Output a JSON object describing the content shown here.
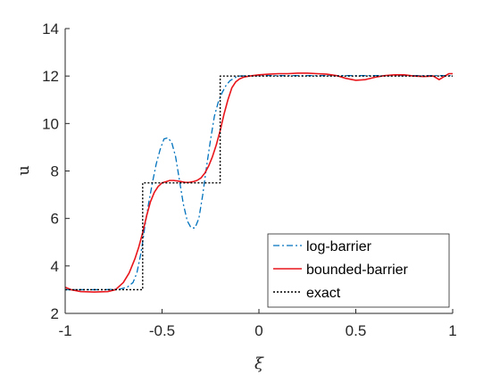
{
  "chart_data": {
    "type": "line",
    "xlabel": "ξ",
    "ylabel": "u",
    "xlim": [
      -1,
      1
    ],
    "ylim": [
      2,
      14
    ],
    "xticks": [
      -1,
      -0.5,
      0,
      0.5,
      1
    ],
    "xtick_labels": [
      "-1",
      "-0.5",
      "0",
      "0.5",
      "1"
    ],
    "yticks": [
      2,
      4,
      6,
      8,
      10,
      12,
      14
    ],
    "ytick_labels": [
      "2",
      "4",
      "6",
      "8",
      "10",
      "12",
      "14"
    ],
    "grid": false,
    "legend_position": "bottom-right",
    "series": [
      {
        "name": "log-barrier",
        "color": "#0072BD",
        "style": "dashdot",
        "x": [
          -1.0,
          -0.9,
          -0.8,
          -0.72,
          -0.68,
          -0.65,
          -0.63,
          -0.61,
          -0.6,
          -0.59,
          -0.57,
          -0.55,
          -0.53,
          -0.51,
          -0.49,
          -0.47,
          -0.45,
          -0.43,
          -0.41,
          -0.39,
          -0.37,
          -0.35,
          -0.33,
          -0.31,
          -0.29,
          -0.27,
          -0.25,
          -0.23,
          -0.21,
          -0.2,
          -0.19,
          -0.17,
          -0.15,
          -0.12,
          -0.1,
          -0.05,
          0.0,
          0.1,
          0.2,
          0.3,
          0.4,
          0.5,
          0.6,
          0.7,
          0.8,
          0.9,
          1.0
        ],
        "y": [
          3.0,
          3.0,
          3.0,
          3.02,
          3.1,
          3.3,
          3.7,
          4.5,
          5.0,
          5.6,
          6.6,
          7.5,
          8.3,
          8.9,
          9.35,
          9.4,
          9.2,
          8.6,
          7.6,
          6.6,
          5.9,
          5.6,
          5.6,
          6.0,
          7.0,
          8.2,
          9.3,
          10.3,
          10.9,
          11.1,
          11.3,
          11.6,
          11.8,
          11.95,
          12.0,
          12.02,
          12.02,
          12.02,
          12.02,
          12.02,
          12.02,
          12.02,
          12.02,
          12.02,
          12.02,
          12.02,
          12.02
        ]
      },
      {
        "name": "bounded-barrier",
        "color": "#E8151B",
        "style": "solid",
        "x": [
          -1.0,
          -0.97,
          -0.92,
          -0.85,
          -0.78,
          -0.74,
          -0.7,
          -0.67,
          -0.64,
          -0.62,
          -0.6,
          -0.58,
          -0.56,
          -0.54,
          -0.52,
          -0.5,
          -0.48,
          -0.46,
          -0.44,
          -0.42,
          -0.4,
          -0.38,
          -0.36,
          -0.34,
          -0.32,
          -0.3,
          -0.28,
          -0.26,
          -0.24,
          -0.22,
          -0.2,
          -0.18,
          -0.16,
          -0.14,
          -0.12,
          -0.1,
          -0.08,
          -0.05,
          0.0,
          0.05,
          0.1,
          0.15,
          0.2,
          0.25,
          0.3,
          0.35,
          0.4,
          0.45,
          0.5,
          0.55,
          0.6,
          0.65,
          0.7,
          0.75,
          0.8,
          0.85,
          0.9,
          0.93,
          0.96,
          0.98,
          1.0
        ],
        "y": [
          3.1,
          3.0,
          2.92,
          2.9,
          2.92,
          3.0,
          3.3,
          3.7,
          4.3,
          4.8,
          5.4,
          6.1,
          6.7,
          7.1,
          7.35,
          7.5,
          7.55,
          7.6,
          7.6,
          7.58,
          7.55,
          7.52,
          7.52,
          7.55,
          7.6,
          7.7,
          7.9,
          8.2,
          8.6,
          9.1,
          9.7,
          10.4,
          11.0,
          11.5,
          11.75,
          11.88,
          11.95,
          12.0,
          12.05,
          12.08,
          12.1,
          12.1,
          12.12,
          12.12,
          12.1,
          12.08,
          12.02,
          11.9,
          11.82,
          11.85,
          11.95,
          12.02,
          12.05,
          12.05,
          12.0,
          11.98,
          12.0,
          11.85,
          12.0,
          12.1,
          12.1
        ]
      },
      {
        "name": "exact",
        "color": "#000000",
        "style": "dotted",
        "x": [
          -1.0,
          -0.6,
          -0.6,
          -0.2,
          -0.2,
          1.0
        ],
        "y": [
          3.0,
          3.0,
          7.5,
          7.5,
          12.0,
          12.0
        ]
      }
    ]
  }
}
